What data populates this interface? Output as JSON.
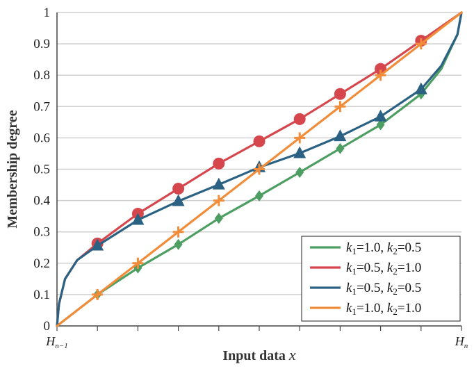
{
  "chart_data": {
    "type": "line",
    "ylabel": "Membership degree",
    "xlabel_text": "Input data ",
    "xlabel_var": "x",
    "ylim": [
      0,
      1
    ],
    "xlim": [
      0,
      1
    ],
    "yticks": [
      "0",
      "0.1",
      "0.2",
      "0.3",
      "0.4",
      "0.5",
      "0.6",
      "0.7",
      "0.8",
      "0.9",
      "1"
    ],
    "xtick_left": {
      "main": "H",
      "sub": "n−1"
    },
    "xtick_right": {
      "main": "H",
      "sub": "n"
    },
    "grid": "horizontal",
    "legend_position": "bottom-right",
    "marker_x": [
      0.1,
      0.2,
      0.3,
      0.4,
      0.5,
      0.6,
      0.7,
      0.8,
      0.9
    ],
    "series": [
      {
        "legend": {
          "k1": "1.0",
          "k2": "0.5"
        },
        "color": "#4d9e63",
        "marker": "diamond",
        "x": [
          0,
          0.1,
          0.2,
          0.3,
          0.4,
          0.5,
          0.6,
          0.7,
          0.8,
          0.9,
          0.95,
          0.99,
          1
        ],
        "y": [
          0,
          0.1,
          0.185,
          0.26,
          0.343,
          0.415,
          0.49,
          0.566,
          0.642,
          0.74,
          0.82,
          0.93,
          1
        ]
      },
      {
        "legend": {
          "k1": "0.5",
          "k2": "1.0"
        },
        "color": "#d6474d",
        "marker": "circle",
        "x": [
          0,
          0.005,
          0.02,
          0.05,
          0.1,
          0.2,
          0.3,
          0.4,
          0.5,
          0.6,
          0.7,
          0.8,
          0.9,
          1
        ],
        "y": [
          0,
          0.07,
          0.15,
          0.21,
          0.263,
          0.358,
          0.438,
          0.518,
          0.589,
          0.66,
          0.74,
          0.82,
          0.91,
          1
        ]
      },
      {
        "legend": {
          "k1": "0.5",
          "k2": "0.5"
        },
        "color": "#2b6283",
        "marker": "triangle",
        "x": [
          0,
          0.005,
          0.02,
          0.05,
          0.1,
          0.2,
          0.3,
          0.4,
          0.5,
          0.6,
          0.7,
          0.8,
          0.9,
          0.95,
          0.99,
          1
        ],
        "y": [
          0,
          0.07,
          0.15,
          0.21,
          0.256,
          0.338,
          0.398,
          0.451,
          0.506,
          0.551,
          0.605,
          0.668,
          0.755,
          0.83,
          0.93,
          1
        ]
      },
      {
        "legend": {
          "k1": "1.0",
          "k2": "1.0"
        },
        "color": "#f18d3a",
        "marker": "plus",
        "x": [
          0,
          0.1,
          0.2,
          0.3,
          0.4,
          0.5,
          0.6,
          0.7,
          0.8,
          0.9,
          1
        ],
        "y": [
          0,
          0.1,
          0.2,
          0.3,
          0.4,
          0.5,
          0.6,
          0.7,
          0.8,
          0.9,
          1
        ]
      }
    ]
  }
}
